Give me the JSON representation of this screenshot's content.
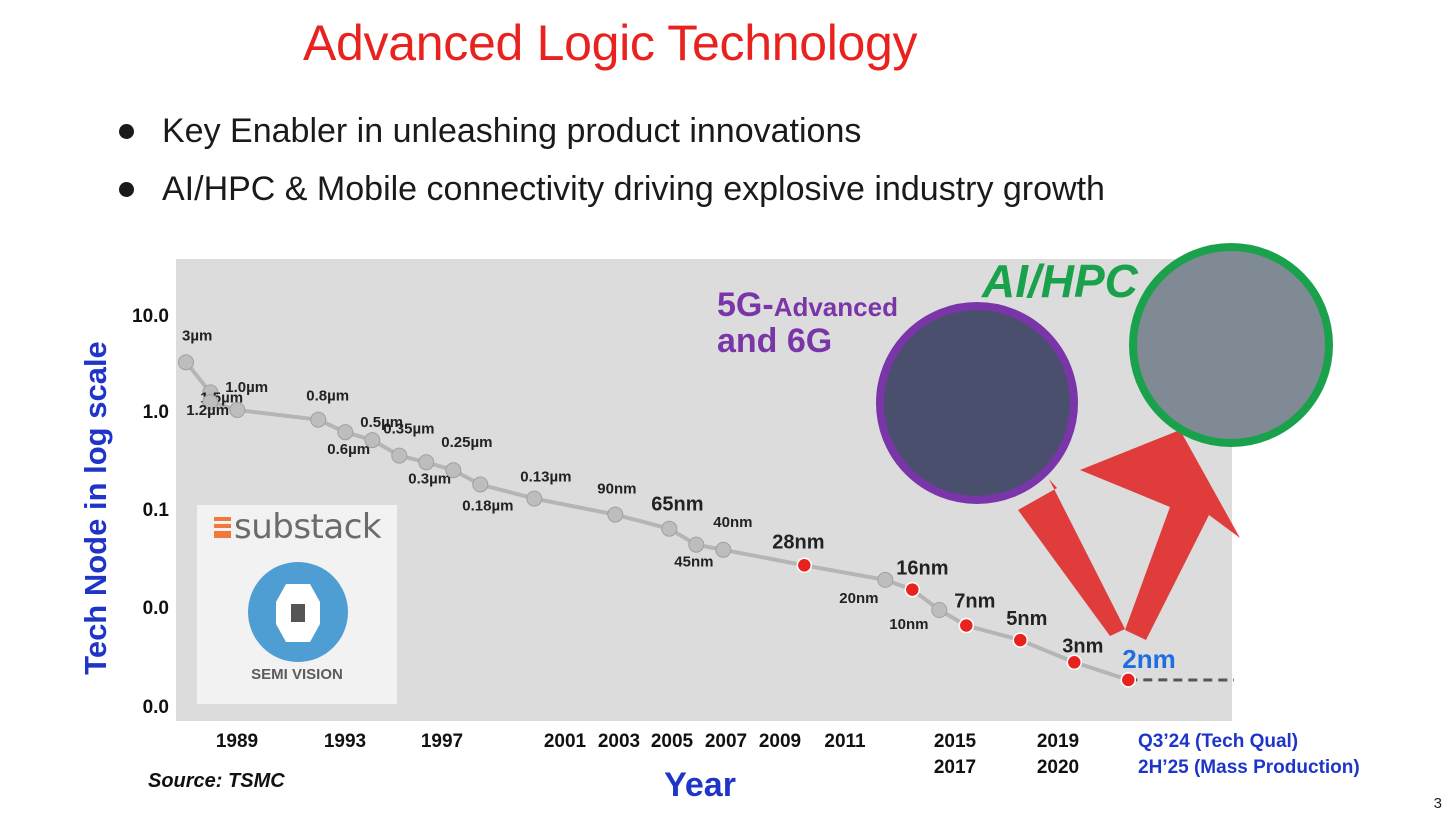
{
  "slide": {
    "title": "Advanced Logic Technology",
    "bullets": [
      "Key Enabler in unleashing product innovations",
      "AI/HPC & Mobile connectivity driving explosive industry growth"
    ],
    "source": "Source: TSMC",
    "page_number": "3",
    "callouts": {
      "g5_line1": "5G-",
      "g5_line1_small": "Advanced",
      "g5_line2": "and 6G",
      "ai": "AI/HPC"
    },
    "badge": {
      "brand": "substack",
      "name": "SEMI VISION"
    },
    "colors": {
      "title": "#e8231f",
      "axis_title": "#1f35c8",
      "highlight_node": "#e8231f",
      "node": "#bdbdbd",
      "plot_bg": "#dcdcdc",
      "g5": "#7a35a8",
      "ai": "#1aa14b",
      "arrow": "#e02020"
    },
    "icons": [
      "substack-logo-icon",
      "semi-vision-logo-icon",
      "up-arrow-icon"
    ]
  },
  "chart_data": {
    "type": "line",
    "ylabel": "Tech Node in log scale",
    "xlabel": "Year",
    "yscale": "log",
    "y_tick_labels": [
      "10.0",
      "1.0",
      "0.1",
      "0.0",
      "0.0"
    ],
    "x_tick_labels": [
      {
        "line1": "1989"
      },
      {
        "line1": "1993"
      },
      {
        "line1": "1997"
      },
      {
        "line1": "2001"
      },
      {
        "line1": "2003"
      },
      {
        "line1": "2005"
      },
      {
        "line1": "2007"
      },
      {
        "line1": "2009"
      },
      {
        "line1": "2011"
      },
      {
        "line1": "2015",
        "line2": "2017"
      },
      {
        "line1": "2019",
        "line2": "2020"
      },
      {
        "line1": "Q3’24 (Tech Qual)",
        "line2": "2H’25 (Mass Production)",
        "blue": true
      }
    ],
    "grid": false,
    "series": [
      {
        "points": [
          {
            "label": "3µm",
            "x": 1987.3,
            "y": 3
          },
          {
            "label": "1.5µm",
            "x": 1988.2,
            "y": 1.5
          },
          {
            "label": "1.2µm",
            "x": 1988.2,
            "y": 1.2
          },
          {
            "label": "1.0µm",
            "x": 1989.2,
            "y": 1.0
          },
          {
            "label": "0.8µm",
            "x": 1992.2,
            "y": 0.8
          },
          {
            "label": "0.6µm",
            "x": 1993.2,
            "y": 0.6
          },
          {
            "label": "0.5µm",
            "x": 1994.2,
            "y": 0.5
          },
          {
            "label": "0.35µm",
            "x": 1995.2,
            "y": 0.35
          },
          {
            "label": "0.3µm",
            "x": 1996.2,
            "y": 0.3
          },
          {
            "label": "0.25µm",
            "x": 1997.2,
            "y": 0.25
          },
          {
            "label": "0.18µm",
            "x": 1998.2,
            "y": 0.18
          },
          {
            "label": "0.13µm",
            "x": 2000.2,
            "y": 0.13
          },
          {
            "label": "90nm",
            "x": 2003.2,
            "y": 0.09
          },
          {
            "label": "65nm",
            "x": 2005.2,
            "y": 0.065
          },
          {
            "label": "45nm",
            "x": 2006.2,
            "y": 0.045
          },
          {
            "label": "40nm",
            "x": 2007.2,
            "y": 0.04
          },
          {
            "label": "28nm",
            "x": 2010.2,
            "y": 0.028,
            "highlight": true
          },
          {
            "label": "20nm",
            "x": 2013.2,
            "y": 0.02
          },
          {
            "label": "16nm",
            "x": 2014.2,
            "y": 0.016,
            "highlight": true
          },
          {
            "label": "10nm",
            "x": 2015.2,
            "y": 0.01
          },
          {
            "label": "7nm",
            "x": 2016.2,
            "y": 0.007,
            "highlight": true
          },
          {
            "label": "5nm",
            "x": 2018.2,
            "y": 0.005,
            "highlight": true
          },
          {
            "label": "3nm",
            "x": 2020.2,
            "y": 0.003,
            "highlight": true
          },
          {
            "label": "2nm",
            "x": 2022.2,
            "y": 0.002,
            "highlight": true,
            "blue": true
          }
        ]
      }
    ]
  }
}
